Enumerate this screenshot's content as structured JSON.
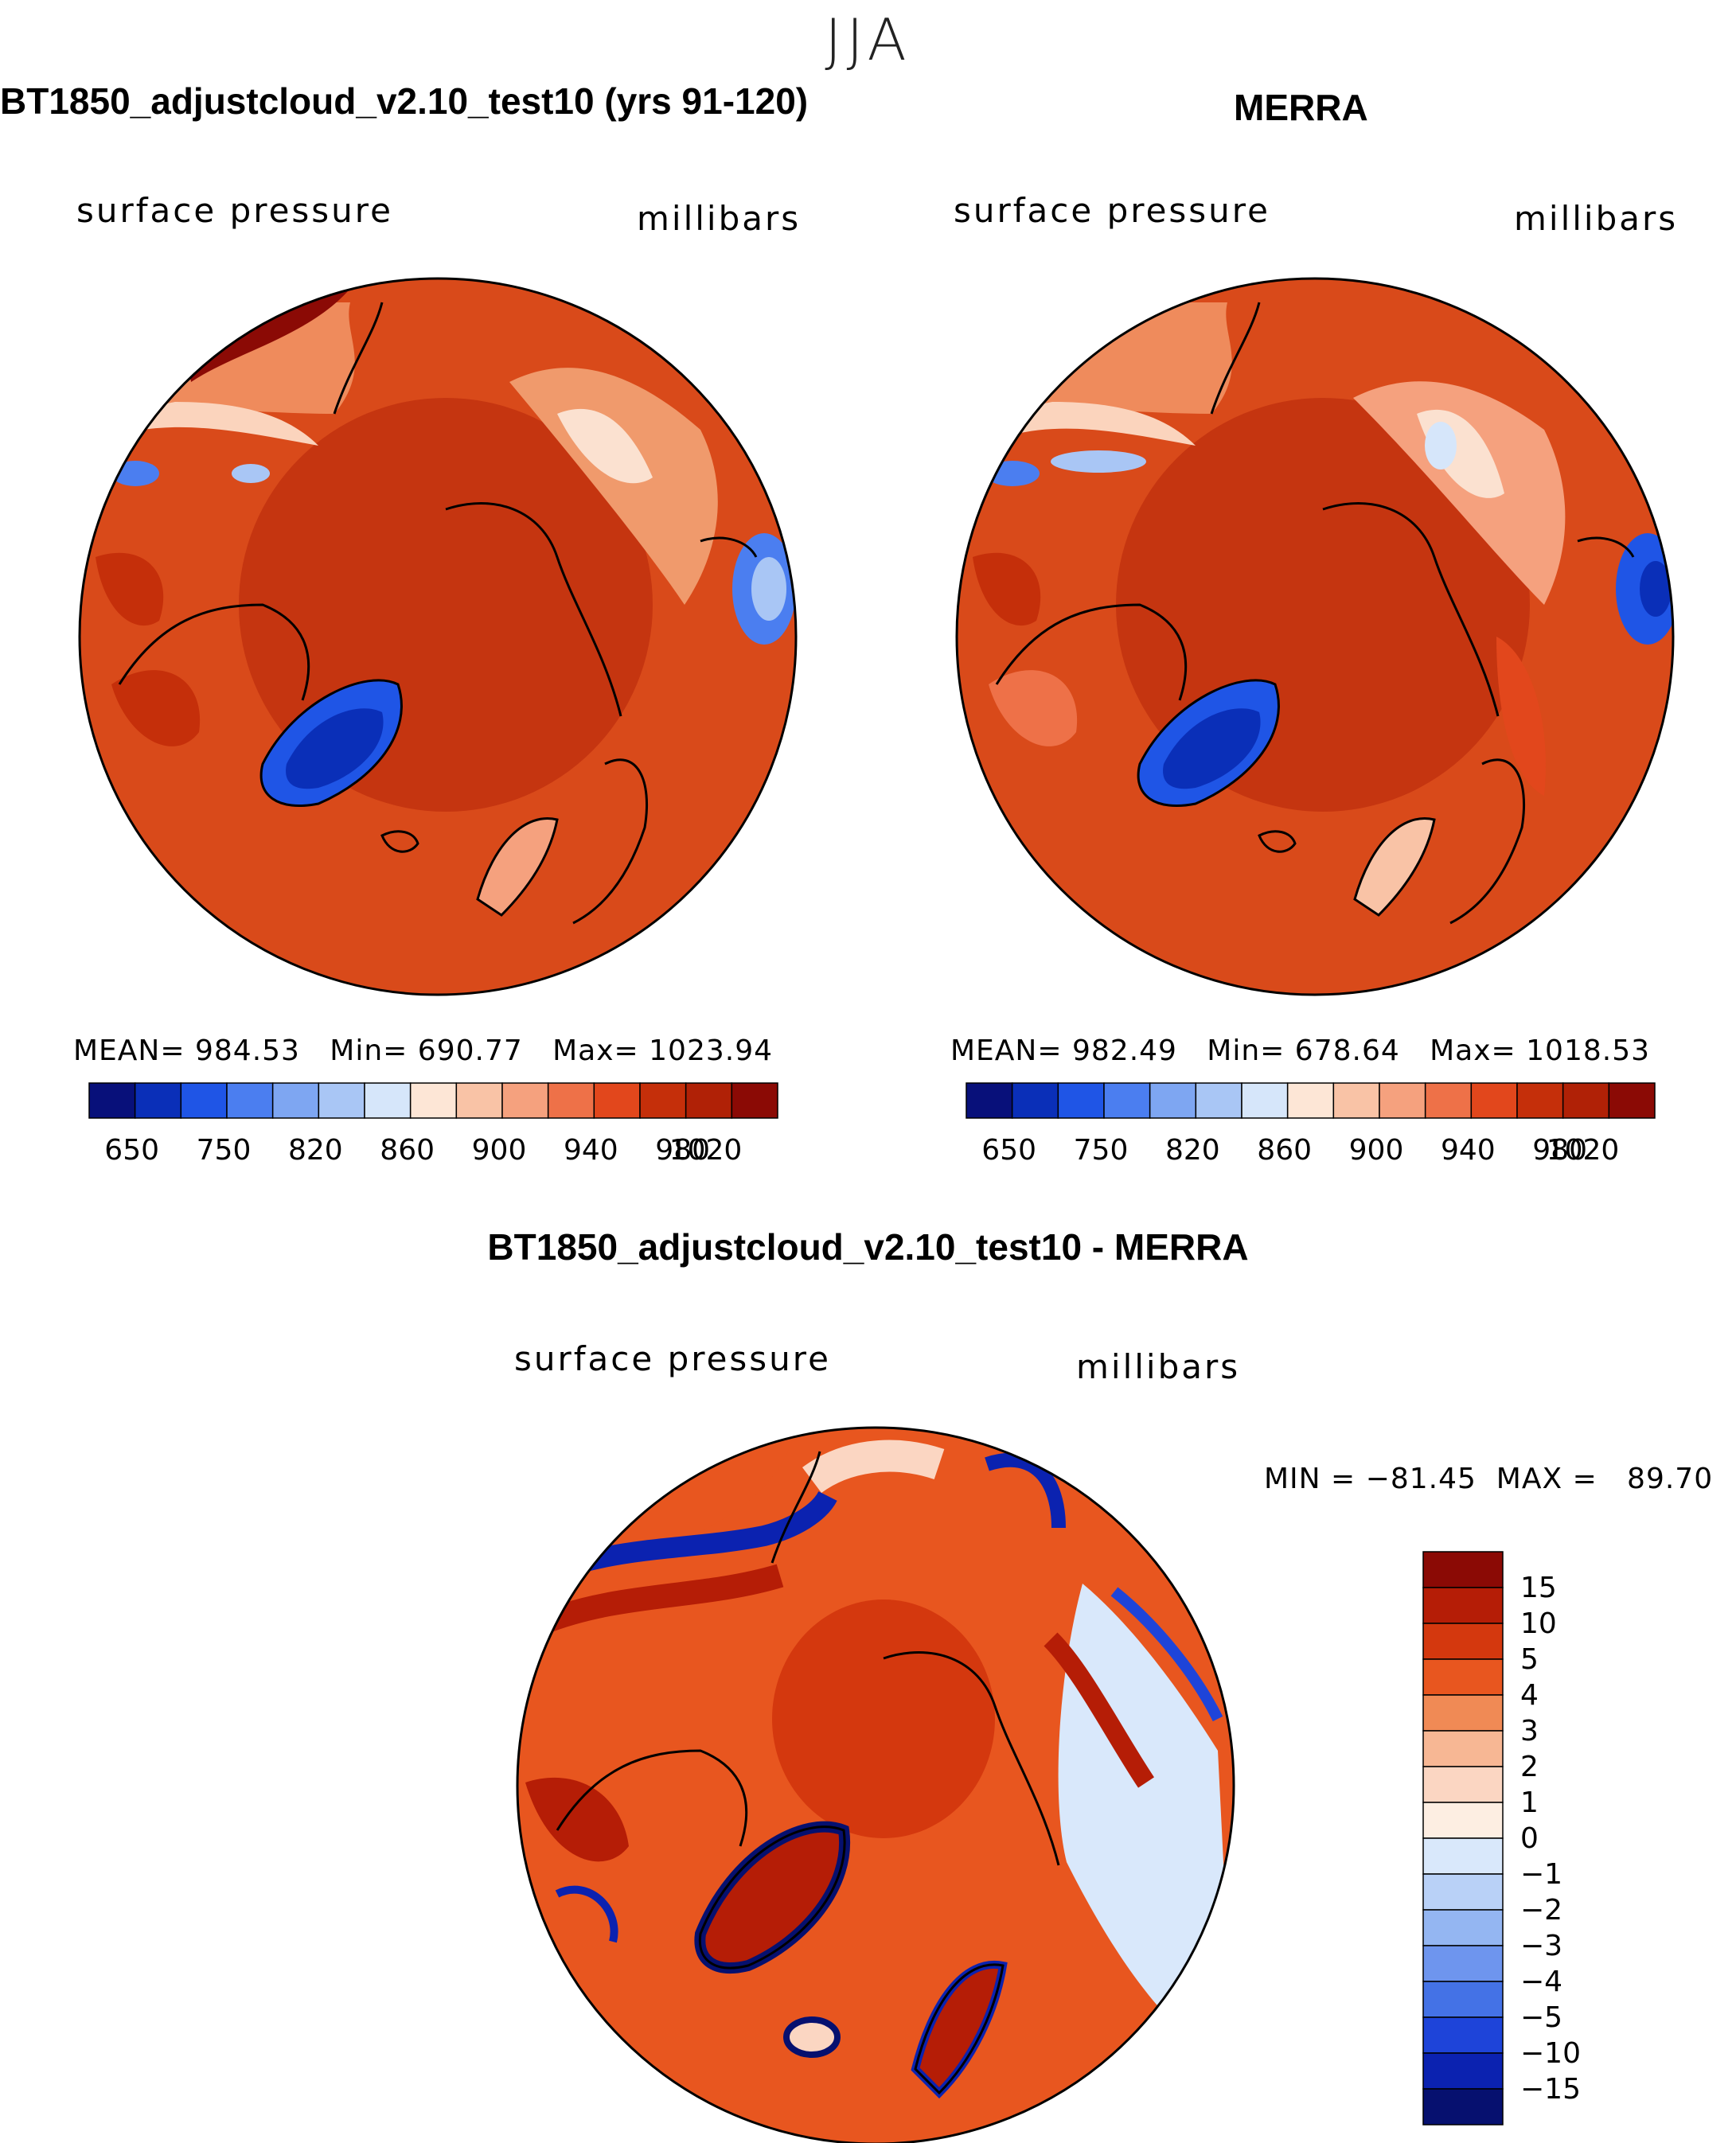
{
  "season": "JJA",
  "panels": [
    {
      "title": "BT1850_adjustcloud_v2.10_test10 (yrs 91-120)",
      "variable": "surface pressure",
      "units": "millibars",
      "stats": {
        "mean_label": "MEAN=",
        "mean": "984.53",
        "min_label": "Min=",
        "min": "690.77",
        "max_label": "Max=",
        "max": "1023.94"
      }
    },
    {
      "title": "MERRA",
      "variable": "surface pressure",
      "units": "millibars",
      "stats": {
        "mean_label": "MEAN=",
        "mean": "982.49",
        "min_label": "Min=",
        "min": "678.64",
        "max_label": "Max=",
        "max": "1018.53"
      }
    },
    {
      "title": "BT1850_adjustcloud_v2.10_test10 - MERRA",
      "variable": "surface pressure",
      "units": "millibars",
      "stats_text": "MIN = −81.45  MAX =   89.70"
    }
  ],
  "chart_data": [
    {
      "type": "heatmap",
      "projection": "north-polar-stereographic",
      "title": "BT1850_adjustcloud_v2.10_test10 (yrs 91-120)",
      "variable": "surface pressure",
      "units": "millibars",
      "mean": 984.53,
      "min": 690.77,
      "max": 1023.94,
      "colorbar_ticks": [
        "650",
        "750",
        "820",
        "860",
        "900",
        "940",
        "980",
        "1020"
      ],
      "colorbar_colors": [
        "#08107a",
        "#0a2fb8",
        "#1f55e6",
        "#4b7ef0",
        "#7ea6f2",
        "#a9c6f5",
        "#d6e6fa",
        "#fde6d6",
        "#f9c3a6",
        "#f5a17e",
        "#ee7148",
        "#e2471c",
        "#c52f0a",
        "#b02106",
        "#8b0a05"
      ]
    },
    {
      "type": "heatmap",
      "projection": "north-polar-stereographic",
      "title": "MERRA",
      "variable": "surface pressure",
      "units": "millibars",
      "mean": 982.49,
      "min": 678.64,
      "max": 1018.53,
      "colorbar_ticks": [
        "650",
        "750",
        "820",
        "860",
        "900",
        "940",
        "980",
        "1020"
      ],
      "colorbar_colors": [
        "#08107a",
        "#0a2fb8",
        "#1f55e6",
        "#4b7ef0",
        "#7ea6f2",
        "#a9c6f5",
        "#d6e6fa",
        "#fde6d6",
        "#f9c3a6",
        "#f5a17e",
        "#ee7148",
        "#e2471c",
        "#c52f0a",
        "#b02106",
        "#8b0a05"
      ]
    },
    {
      "type": "heatmap",
      "projection": "north-polar-stereographic",
      "title": "BT1850_adjustcloud_v2.10_test10 - MERRA",
      "variable": "surface pressure",
      "units": "millibars",
      "min": -81.45,
      "max": 89.7,
      "colorbar_ticks": [
        "15",
        "10",
        "5",
        "4",
        "3",
        "2",
        "1",
        "0",
        "−1",
        "−2",
        "−3",
        "−4",
        "−5",
        "−10",
        "−15"
      ],
      "colorbar_colors": [
        "#8b0a05",
        "#b51d06",
        "#d4380e",
        "#e8561f",
        "#f08a55",
        "#f7b794",
        "#fbd6c2",
        "#fdeee2",
        "#d9e8fb",
        "#b9d1f7",
        "#94b6f2",
        "#6e95ee",
        "#4472e6",
        "#1e44d9",
        "#0b22b0",
        "#06106f"
      ]
    }
  ]
}
